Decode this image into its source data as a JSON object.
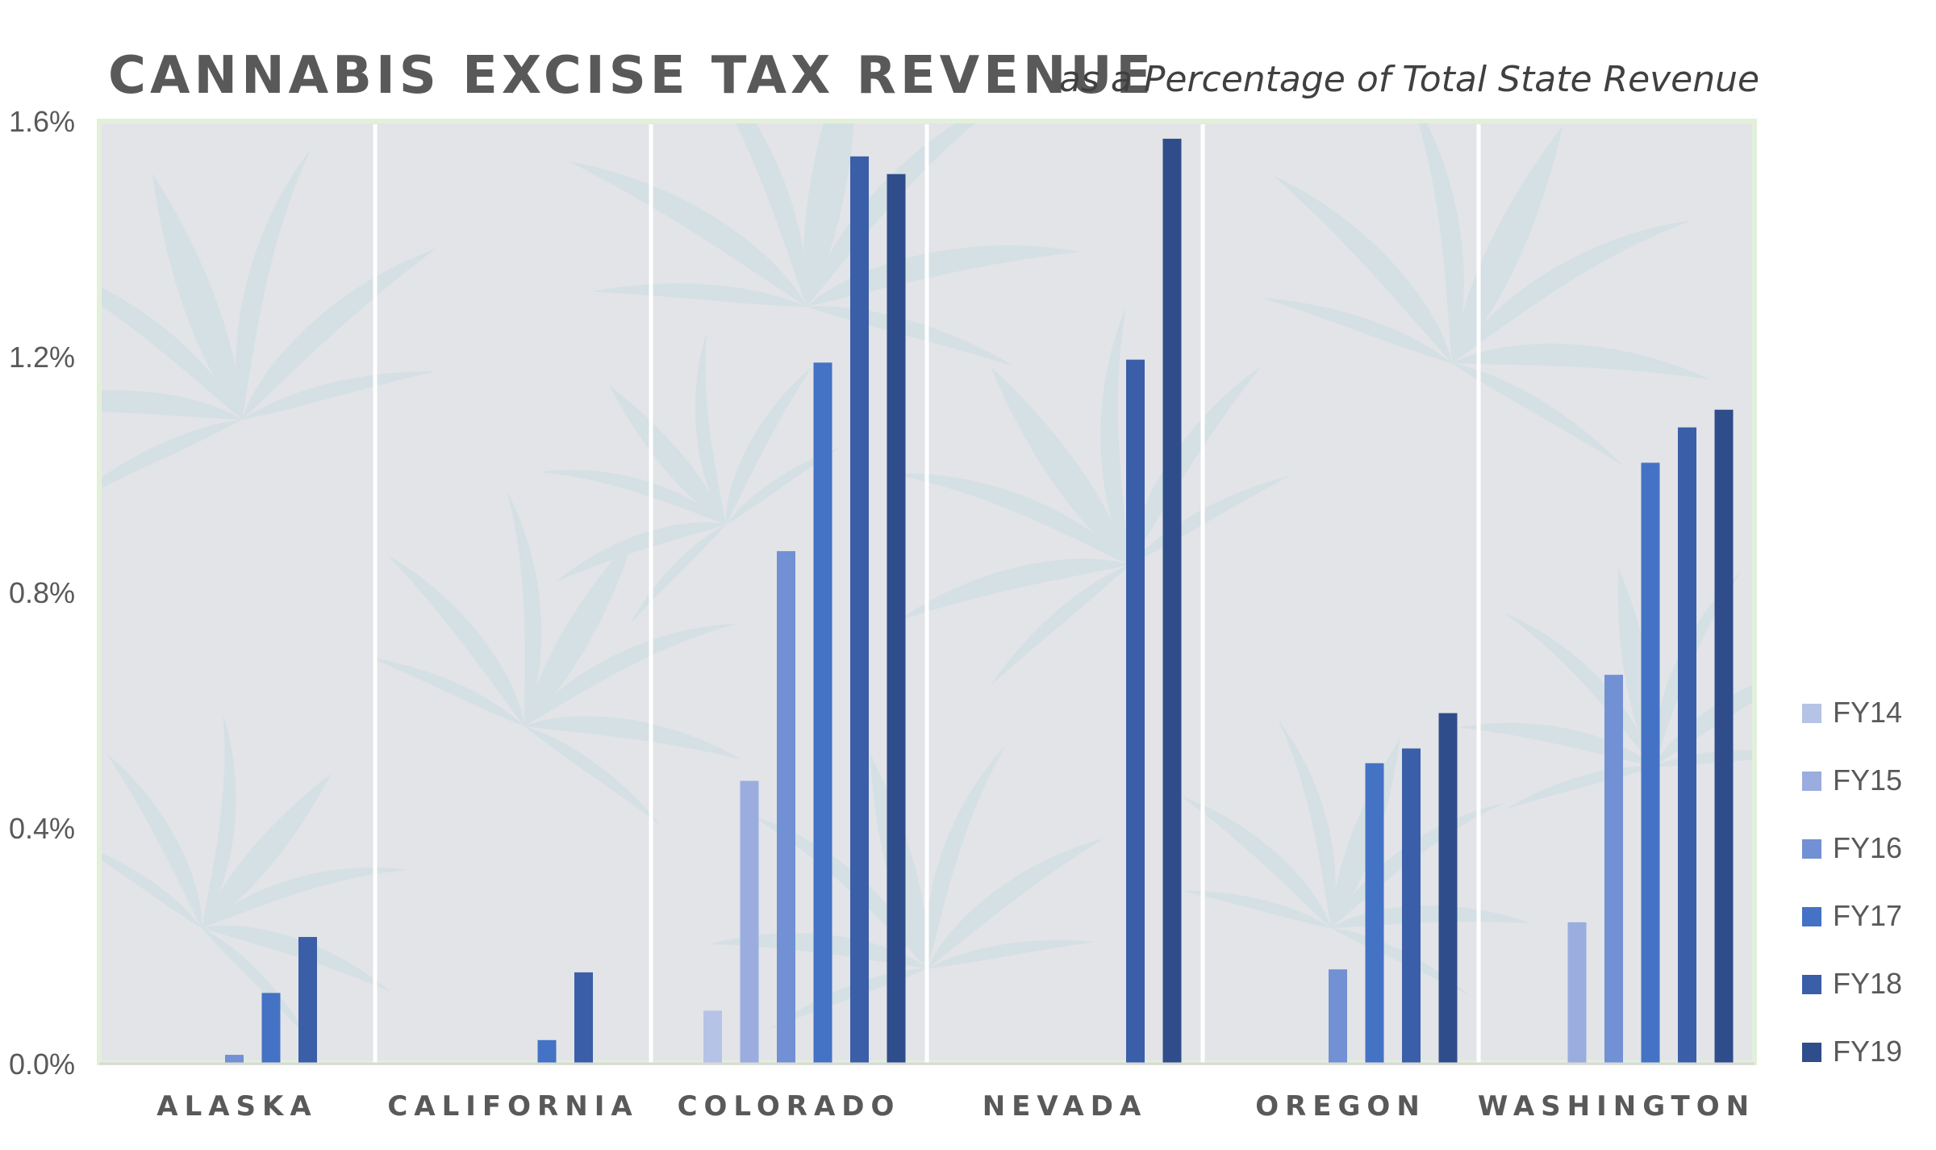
{
  "chart_data": {
    "type": "bar",
    "title": "CANNABIS EXCISE TAX REVENUE",
    "subtitle": "as a Percentage of Total State Revenue",
    "categories": [
      "ALASKA",
      "CALIFORNIA",
      "COLORADO",
      "NEVADA",
      "OREGON",
      "WASHINGTON"
    ],
    "y_tick_labels": [
      "0.0%",
      "0.4%",
      "0.8%",
      "1.2%",
      "1.6%"
    ],
    "y_ticks": [
      0,
      0.4,
      0.8,
      1.2,
      1.6
    ],
    "ylim": [
      0,
      1.6
    ],
    "value_unit": "%",
    "grid": false,
    "legend_position": "right",
    "series": [
      {
        "name": "FY14",
        "color": "#b5c3e6",
        "values": [
          null,
          null,
          0.09,
          null,
          null,
          null
        ]
      },
      {
        "name": "FY15",
        "color": "#9aadde",
        "values": [
          null,
          null,
          0.48,
          null,
          null,
          0.24
        ]
      },
      {
        "name": "FY16",
        "color": "#7290d4",
        "values": [
          0.015,
          null,
          0.87,
          null,
          0.16,
          0.66
        ]
      },
      {
        "name": "FY17",
        "color": "#4472c4",
        "values": [
          0.12,
          0.04,
          1.19,
          null,
          0.51,
          1.02
        ]
      },
      {
        "name": "FY18",
        "color": "#3a5ea8",
        "values": [
          0.215,
          0.155,
          1.54,
          1.195,
          0.535,
          1.08
        ]
      },
      {
        "name": "FY19",
        "color": "#2f4d8a",
        "values": [
          null,
          null,
          1.51,
          1.57,
          0.595,
          1.11
        ]
      }
    ],
    "colors": {
      "title": "#595959",
      "text": "#595959",
      "plot_background": "#e3e4e8",
      "plot_border": "#e2f0d9",
      "separator": "#ffffff",
      "leaf": "#c9dde0"
    }
  }
}
